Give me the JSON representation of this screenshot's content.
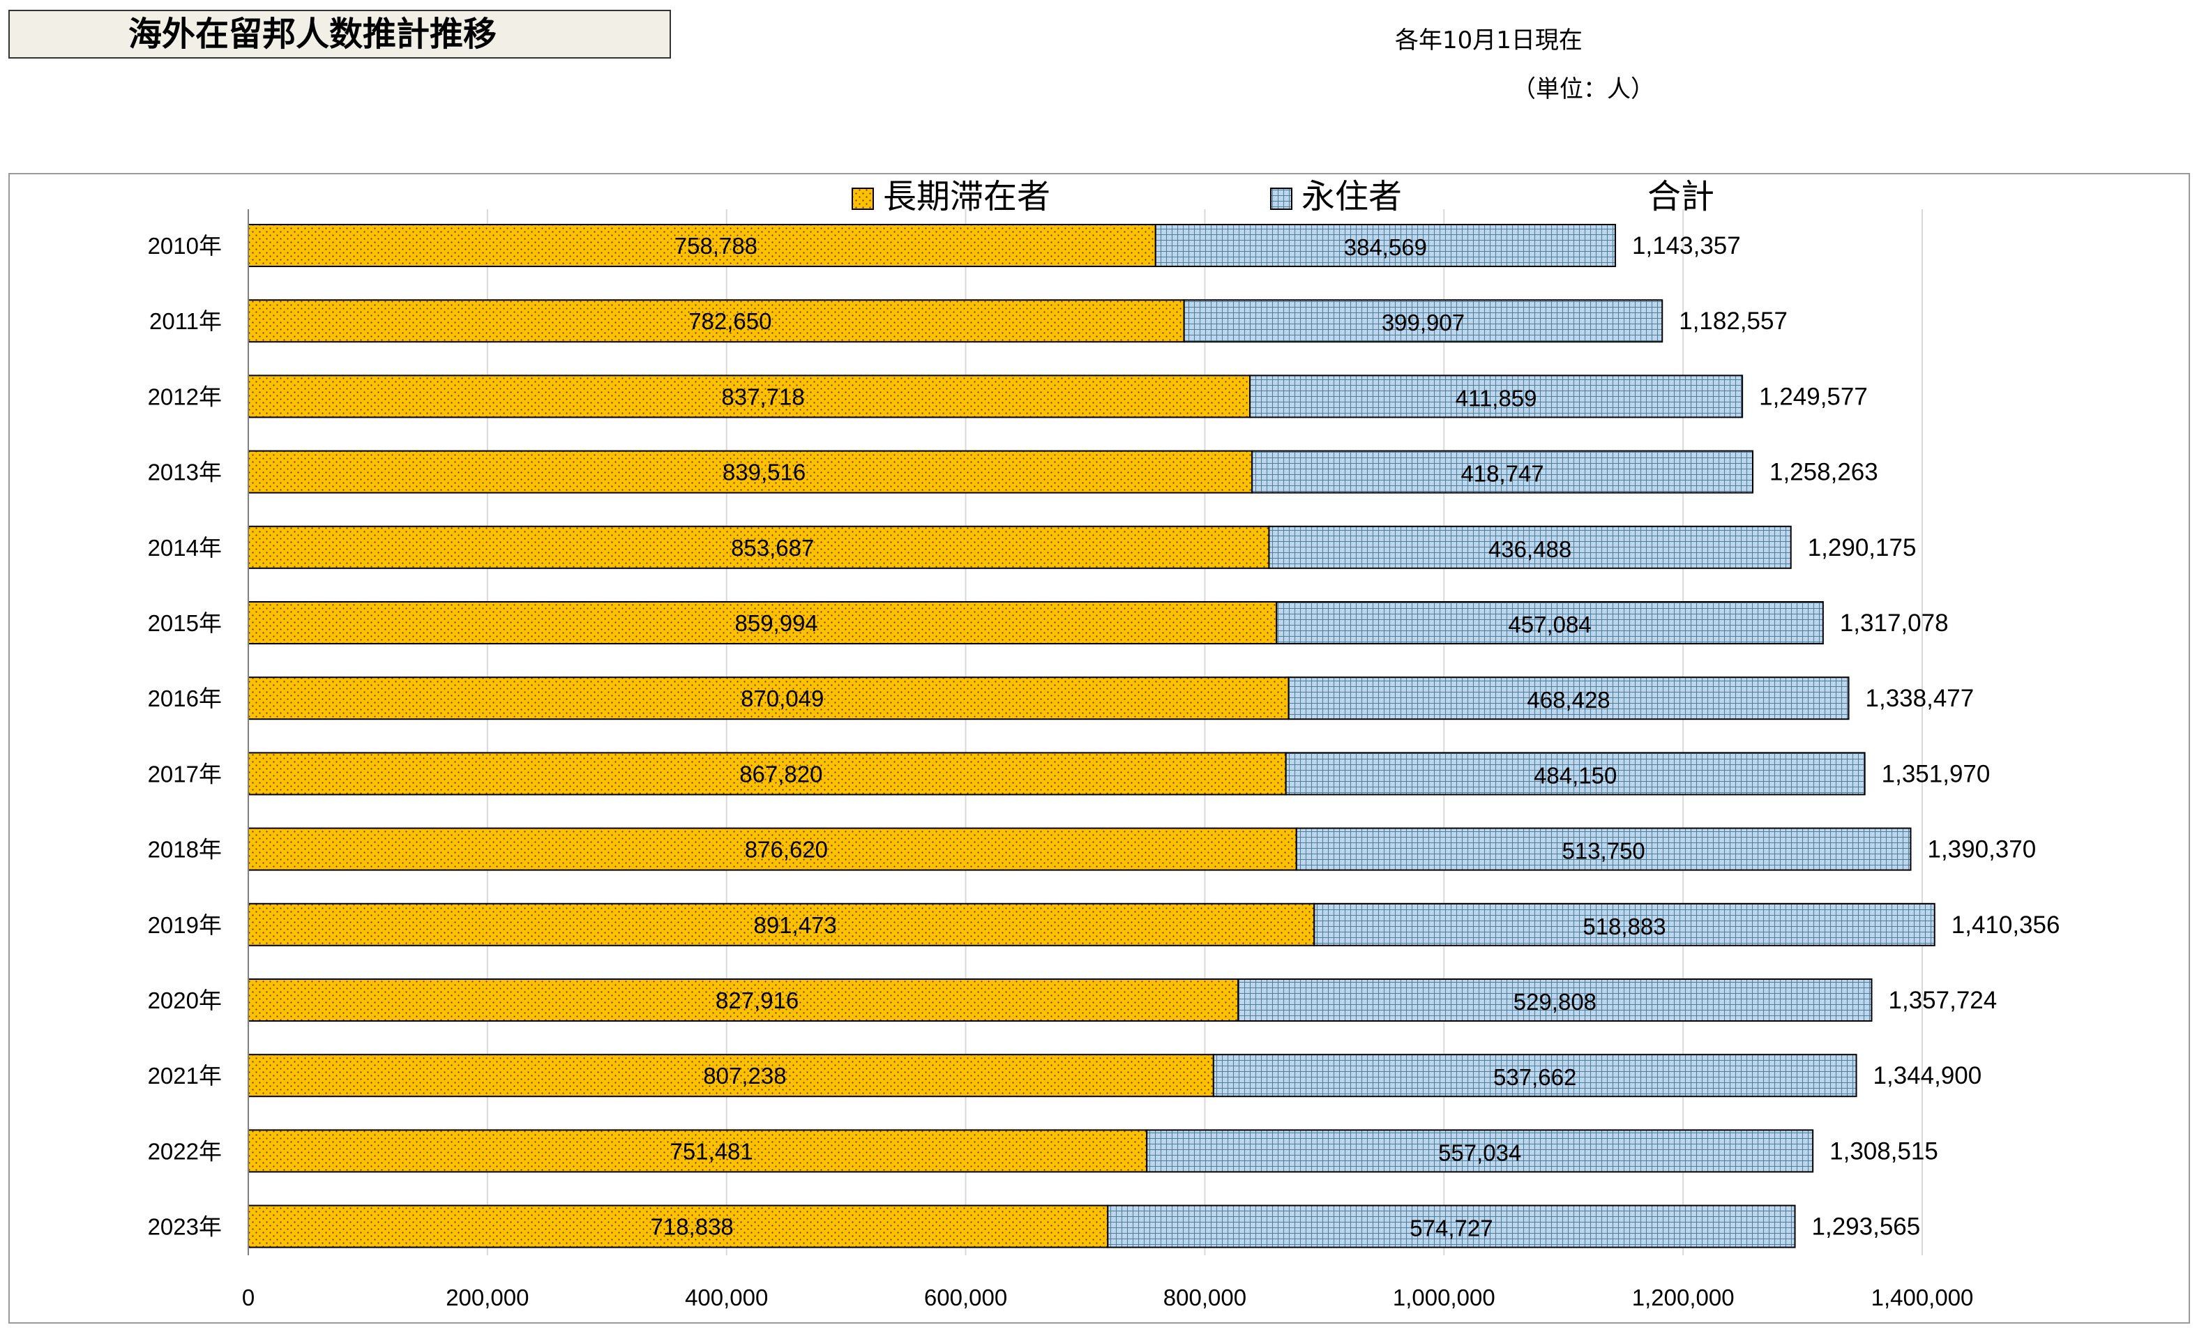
{
  "header": {
    "title": "海外在留邦人数推計推移",
    "note_date": "各年10月1日現在",
    "note_unit": "（単位：人）"
  },
  "colors": {
    "long_term": "#FFC000",
    "permanent": "#BDD7EE",
    "frame": "#9a9a9a"
  },
  "chart_data": {
    "type": "bar",
    "orientation": "horizontal",
    "stacked": true,
    "categories": [
      "2010年",
      "2011年",
      "2012年",
      "2013年",
      "2014年",
      "2015年",
      "2016年",
      "2017年",
      "2018年",
      "2019年",
      "2020年",
      "2021年",
      "2022年",
      "2023年"
    ],
    "series": [
      {
        "name": "長期滞在者",
        "pattern": "dots",
        "values": [
          758788,
          782650,
          837718,
          839516,
          853687,
          859994,
          870049,
          867820,
          876620,
          891473,
          827916,
          807238,
          751481,
          718838
        ]
      },
      {
        "name": "永住者",
        "pattern": "grid",
        "values": [
          384569,
          399907,
          411859,
          418747,
          436488,
          457084,
          468428,
          484150,
          513750,
          518883,
          529808,
          537662,
          557034,
          574727
        ]
      }
    ],
    "total_label": "合計",
    "totals": [
      1143357,
      1182557,
      1249577,
      1258263,
      1290175,
      1317078,
      1338477,
      1351970,
      1390370,
      1410356,
      1357724,
      1344900,
      1308515,
      1293565
    ],
    "xlim": [
      0,
      1400000
    ],
    "xticks": [
      0,
      200000,
      400000,
      600000,
      800000,
      1000000,
      1200000,
      1400000
    ],
    "xtick_labels": [
      "0",
      "200,000",
      "400,000",
      "600,000",
      "800,000",
      "1,000,000",
      "1,200,000",
      "1,400,000"
    ],
    "grid": true,
    "legend_position": "top"
  }
}
